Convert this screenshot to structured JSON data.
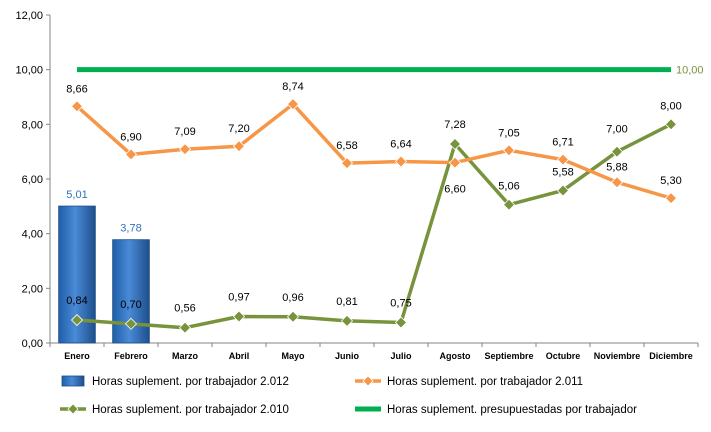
{
  "chart_data": {
    "type": "bar+line",
    "title": "",
    "xlabel": "",
    "ylabel": "",
    "ylim": [
      0,
      12
    ],
    "y_ticks": [
      "0,00",
      "2,00",
      "4,00",
      "6,00",
      "8,00",
      "10,00",
      "12,00"
    ],
    "grid": false,
    "legend_position": "bottom",
    "categories": [
      "Enero",
      "Febrero",
      "Marzo",
      "Abril",
      "Mayo",
      "Junio",
      "Julio",
      "Agosto",
      "Septiembre",
      "Octubre",
      "Noviembre",
      "Diciembre"
    ],
    "series": [
      {
        "name": "Horas suplement. por trabajador 2.012",
        "type": "bar",
        "color": "#2e74c0",
        "values": [
          5.01,
          3.78,
          null,
          null,
          null,
          null,
          null,
          null,
          null,
          null,
          null,
          null
        ],
        "labels": [
          "5,01",
          "3,78",
          "",
          "",
          "",
          "",
          "",
          "",
          "",
          "",
          "",
          ""
        ]
      },
      {
        "name": "Horas suplement. por trabajador 2.011",
        "type": "line",
        "color": "#f79646",
        "values": [
          8.66,
          6.9,
          7.09,
          7.2,
          8.74,
          6.58,
          6.64,
          6.6,
          7.05,
          6.71,
          5.88,
          5.3
        ],
        "labels": [
          "8,66",
          "6,90",
          "7,09",
          "7,20",
          "8,74",
          "6,58",
          "6,64",
          "6,60",
          "7,05",
          "6,71",
          "5,88",
          "5,30"
        ]
      },
      {
        "name": "Horas suplement. por trabajador 2.010",
        "type": "line",
        "color": "#77933c",
        "values": [
          0.84,
          0.7,
          0.56,
          0.97,
          0.96,
          0.81,
          0.75,
          7.28,
          5.06,
          5.58,
          7.0,
          8.0
        ],
        "labels": [
          "0,84",
          "0,70",
          "0,56",
          "0,97",
          "0,96",
          "0,81",
          "0,75",
          "7,28",
          "5,06",
          "5,58",
          "7,00",
          "8,00"
        ]
      },
      {
        "name": "Horas suplement. presupuestadas por trabajador",
        "type": "line",
        "color": "#00b050",
        "values": [
          10,
          10,
          10,
          10,
          10,
          10,
          10,
          10,
          10,
          10,
          10,
          10
        ],
        "end_label": "10,00",
        "end_label_color": "#77933c"
      }
    ]
  }
}
